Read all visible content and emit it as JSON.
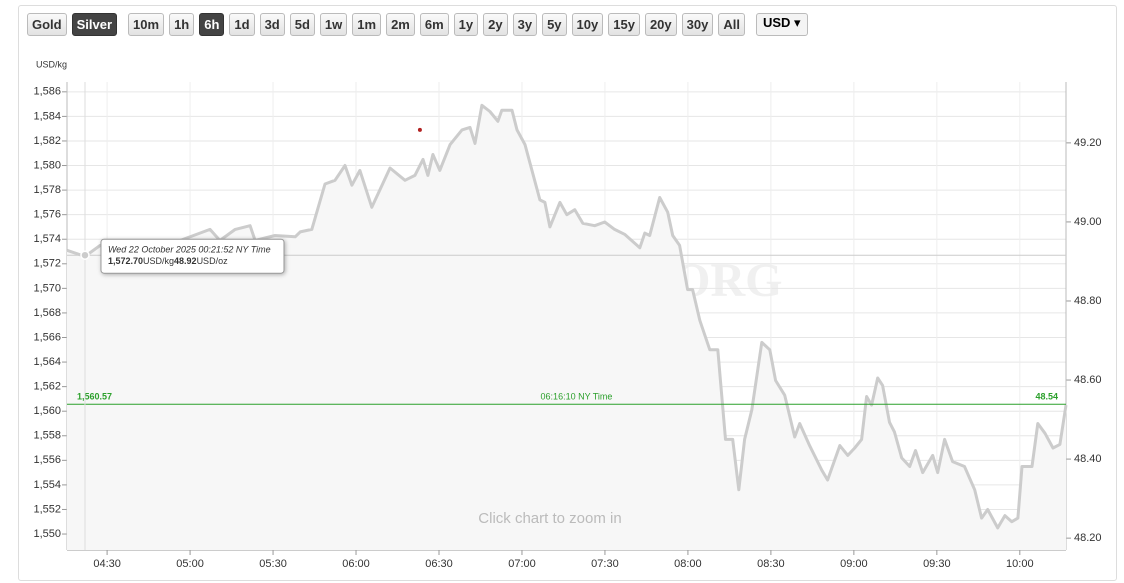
{
  "toolbar": {
    "metals": [
      "Gold",
      "Silver"
    ],
    "active_metal": "Silver",
    "ranges": [
      "10m",
      "1h",
      "6h",
      "1d",
      "3d",
      "5d",
      "1w",
      "1m",
      "2m",
      "6m",
      "1y",
      "2y",
      "3y",
      "5y",
      "10y",
      "15y",
      "20y",
      "30y",
      "All"
    ],
    "active_range": "6h",
    "currency": "USD"
  },
  "chart_data": {
    "type": "line",
    "y_axis_label": "USD/kg",
    "watermark": "SILVERPRICE.ORG",
    "hint": "Click chart to zoom in",
    "grid": true,
    "xlim": [
      255.5,
      616.7
    ],
    "xticks": [
      {
        "value": 270,
        "label": "04:30"
      },
      {
        "value": 300,
        "label": "05:00"
      },
      {
        "value": 330,
        "label": "05:30"
      },
      {
        "value": 360,
        "label": "06:00"
      },
      {
        "value": 390,
        "label": "06:30"
      },
      {
        "value": 420,
        "label": "07:00"
      },
      {
        "value": 450,
        "label": "07:30"
      },
      {
        "value": 480,
        "label": "08:00"
      },
      {
        "value": 510,
        "label": "08:30"
      },
      {
        "value": 540,
        "label": "09:00"
      },
      {
        "value": 570,
        "label": "09:30"
      },
      {
        "value": 600,
        "label": "10:00"
      }
    ],
    "ylim": [
      1548.7,
      1586.8
    ],
    "yticks": [
      {
        "value": 1550,
        "label": "1,550"
      },
      {
        "value": 1552,
        "label": "1,552"
      },
      {
        "value": 1554,
        "label": "1,554"
      },
      {
        "value": 1556,
        "label": "1,556"
      },
      {
        "value": 1558,
        "label": "1,558"
      },
      {
        "value": 1560,
        "label": "1,560"
      },
      {
        "value": 1562,
        "label": "1,562"
      },
      {
        "value": 1564,
        "label": "1,564"
      },
      {
        "value": 1566,
        "label": "1,566"
      },
      {
        "value": 1568,
        "label": "1,568"
      },
      {
        "value": 1570,
        "label": "1,570"
      },
      {
        "value": 1572,
        "label": "1,572"
      },
      {
        "value": 1574,
        "label": "1,574"
      },
      {
        "value": 1576,
        "label": "1,576"
      },
      {
        "value": 1578,
        "label": "1,578"
      },
      {
        "value": 1580,
        "label": "1,580"
      },
      {
        "value": 1582,
        "label": "1,582"
      },
      {
        "value": 1584,
        "label": "1,584"
      },
      {
        "value": 1586,
        "label": "1,586"
      }
    ],
    "y2lim": [
      48.17,
      49.354
    ],
    "y2ticks": [
      {
        "value": 48.2,
        "label": "48.20"
      },
      {
        "value": 48.4,
        "label": "48.40"
      },
      {
        "value": 48.6,
        "label": "48.60"
      },
      {
        "value": 48.8,
        "label": "48.80"
      },
      {
        "value": 49.0,
        "label": "49.00"
      },
      {
        "value": 49.2,
        "label": "49.20"
      }
    ],
    "series": [
      {
        "color": "#cccccc",
        "x": [
          255.5,
          262,
          267.5,
          274.7,
          285.5,
          296.4,
          307.2,
          310.8,
          316.3,
          321.7,
          323.5,
          330.7,
          338,
          339.8,
          344,
          348.8,
          352.4,
          356,
          358.5,
          361.4,
          365.7,
          372.3,
          377.7,
          381.3,
          384.2,
          386,
          387.8,
          390.3,
          394,
          398.3,
          401.2,
          403,
          405.5,
          408.4,
          411.3,
          412.7,
          416.4,
          418.2,
          421.1,
          426.5,
          428.3,
          430.1,
          433.7,
          436.2,
          439.1,
          442,
          446.3,
          449.9,
          453.5,
          457.1,
          462.6,
          464.4,
          466.2,
          469.8,
          472.7,
          474.5,
          477,
          479.9,
          481.7,
          484.3,
          487.9,
          490.8,
          493.6,
          496.2,
          498.4,
          500.5,
          503.1,
          506.7,
          509.6,
          511.7,
          515,
          518.6,
          520.4,
          524,
          528.4,
          530.5,
          534.9,
          537.8,
          540.3,
          542.8,
          544.6,
          546.4,
          548.6,
          550.4,
          552.9,
          554.7,
          557.3,
          560.2,
          562.3,
          564.9,
          568.5,
          570.3,
          572.8,
          575.7,
          580,
          583.7,
          586.2,
          588.4,
          592,
          594.6,
          597.1,
          599.3,
          600.8,
          604.4,
          606.5,
          609.1,
          612,
          614.5,
          616.7
        ],
        "values": [
          1573.1,
          1572.6,
          1573.5,
          1573.9,
          1573.8,
          1573.9,
          1574.8,
          1573.9,
          1574.8,
          1575.1,
          1573.9,
          1574.3,
          1574.2,
          1574.6,
          1574.8,
          1578.5,
          1578.8,
          1580.0,
          1578.4,
          1579.6,
          1576.6,
          1579.8,
          1578.8,
          1579.2,
          1580.5,
          1579.2,
          1580.9,
          1579.6,
          1581.7,
          1582.9,
          1583.1,
          1581.8,
          1584.9,
          1584.4,
          1583.6,
          1584.5,
          1584.5,
          1582.9,
          1581.7,
          1577.2,
          1577.0,
          1575.0,
          1577.0,
          1576.0,
          1576.4,
          1575.3,
          1575.1,
          1575.4,
          1574.8,
          1574.4,
          1573.3,
          1574.5,
          1574.3,
          1577.4,
          1576.2,
          1574.3,
          1573.5,
          1569.9,
          1569.9,
          1567.4,
          1565.0,
          1565.0,
          1557.7,
          1557.7,
          1553.6,
          1557.7,
          1560.1,
          1565.6,
          1565.0,
          1562.5,
          1561.3,
          1557.9,
          1559.0,
          1557.2,
          1555.2,
          1554.4,
          1557.2,
          1556.4,
          1557.0,
          1557.7,
          1561.2,
          1560.5,
          1562.7,
          1562.1,
          1559.1,
          1558.3,
          1556.2,
          1555.5,
          1556.8,
          1555.0,
          1556.4,
          1555.0,
          1557.7,
          1555.9,
          1555.5,
          1553.6,
          1551.3,
          1552.0,
          1550.5,
          1551.5,
          1551.0,
          1551.3,
          1555.5,
          1555.5,
          1559.0,
          1558.2,
          1557.0,
          1557.3,
          1560.5
        ]
      }
    ],
    "current_price": {
      "value": 1560.57,
      "label": "1,560.57",
      "time": "06:16:10 NY Time",
      "oz_value": 48.54,
      "color": "#2ca02c"
    },
    "marker": {
      "x": 383.1,
      "value": 1582.9,
      "color": "#b22222"
    },
    "hover": {
      "x": 262,
      "value": 1572.7,
      "date": "Wed 22 October 2025 00:21:52 NY Time",
      "kg_label": "1,572.70",
      "kg_unit": "USD/kg",
      "oz_label": "48.92",
      "oz_unit": "USD/oz"
    }
  }
}
